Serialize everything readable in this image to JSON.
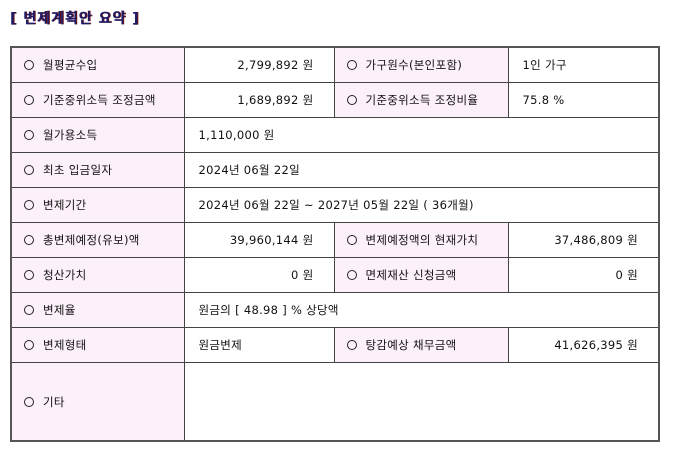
{
  "title": "[ 변제계획안 요약 ]",
  "rows": {
    "monthly_income": {
      "label": "월평균수입",
      "value": "2,799,892 원"
    },
    "household": {
      "label": "가구원수(본인포함)",
      "value": "1인 가구"
    },
    "adjusted_amount": {
      "label": "기준중위소득 조정금액",
      "value": "1,689,892 원"
    },
    "adjusted_ratio": {
      "label": "기준중위소득 조정비율",
      "value": "75.8 %"
    },
    "disposable_income": {
      "label": "월가용소득",
      "value": "1,110,000 원"
    },
    "first_payment": {
      "label": "최초 입금일자",
      "value": "2024년 06월 22일"
    },
    "period": {
      "label": "변제기간",
      "value": "2024년 06월 22일 ~ 2027년 05월 22일 ( 36개월)"
    },
    "total_planned": {
      "label": "총변제예정(유보)액",
      "value": "39,960,144 원"
    },
    "present_value": {
      "label": "변제예정액의 현재가치",
      "value": "37,486,809 원"
    },
    "liquidation_value": {
      "label": "청산가치",
      "value": "0 원"
    },
    "exempt_property": {
      "label": "면제재산 신청금액",
      "value": "0 원"
    },
    "repayment_rate": {
      "label": "변제율",
      "value": "원금의 [ 48.98 ] % 상당액"
    },
    "repayment_type": {
      "label": "변제형태",
      "value": "원금변제"
    },
    "expected_debt": {
      "label": "탕감예상 채무금액",
      "value": "41,626,395 원"
    },
    "other": {
      "label": "기타",
      "value": ""
    }
  }
}
